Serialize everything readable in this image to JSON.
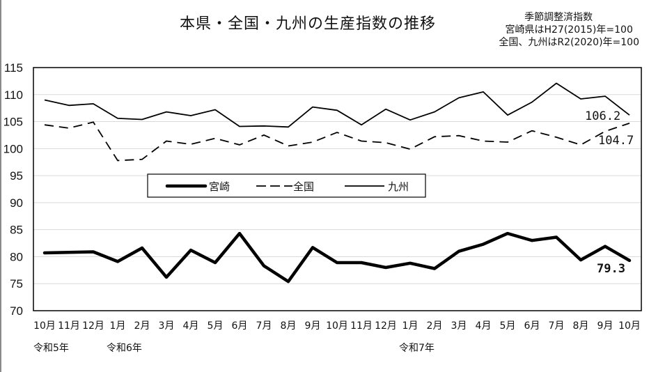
{
  "title": "本県・全国・九州の生産指数の推移",
  "note": {
    "line1": "季節調整済指数",
    "line2": "宮崎県はH27(2015)年=100",
    "line3": "全国、九州はR2(2020)年=100"
  },
  "legend": {
    "miyazaki": "宮崎",
    "national": "全国",
    "kyushu": "九州"
  },
  "end_labels": {
    "kyushu": "106.2",
    "national": "104.7",
    "miyazaki": "79.3"
  },
  "eras": [
    {
      "label": "令和5年",
      "index": 0
    },
    {
      "label": "令和6年",
      "index": 3
    },
    {
      "label": "令和7年",
      "index": 15
    }
  ],
  "colors": {
    "line": "#000000",
    "grid": "#d9d9d9",
    "frame": "#000000"
  },
  "chart_data": {
    "type": "line",
    "title": "本県・全国・九州の生産指数の推移",
    "subtitle": "季節調整済指数 / 宮崎県はH27(2015)年=100 / 全国、九州はR2(2020)年=100",
    "xlabel": "",
    "ylabel": "",
    "ylim": [
      70,
      115
    ],
    "yticks": [
      70,
      75,
      80,
      85,
      90,
      95,
      100,
      105,
      110,
      115
    ],
    "grid": true,
    "legend_position": "inside-middle-left",
    "categories": [
      "10月",
      "11月",
      "12月",
      "1月",
      "2月",
      "3月",
      "4月",
      "5月",
      "6月",
      "7月",
      "8月",
      "9月",
      "10月",
      "11月",
      "12月",
      "1月",
      "2月",
      "3月",
      "4月",
      "5月",
      "6月",
      "7月",
      "8月",
      "9月",
      "10月"
    ],
    "category_groups": [
      "令和5年",
      "令和5年",
      "令和5年",
      "令和6年",
      "令和6年",
      "令和6年",
      "令和6年",
      "令和6年",
      "令和6年",
      "令和6年",
      "令和6年",
      "令和6年",
      "令和6年",
      "令和6年",
      "令和6年",
      "令和7年",
      "令和7年",
      "令和7年",
      "令和7年",
      "令和7年",
      "令和7年",
      "令和7年",
      "令和7年",
      "令和7年",
      "令和7年"
    ],
    "series": [
      {
        "name": "宮崎",
        "style": "solid-thick",
        "values": [
          80.7,
          80.8,
          80.9,
          79.1,
          81.6,
          76.2,
          81.2,
          78.9,
          84.3,
          78.3,
          75.4,
          81.7,
          78.9,
          78.9,
          78.0,
          78.8,
          77.8,
          81.0,
          82.3,
          84.3,
          83.0,
          83.6,
          79.4,
          81.9,
          79.3
        ]
      },
      {
        "name": "全国",
        "style": "dashed",
        "values": [
          104.4,
          103.8,
          104.9,
          97.8,
          98.0,
          101.4,
          100.8,
          101.9,
          100.7,
          102.5,
          100.5,
          101.2,
          103.0,
          101.4,
          101.1,
          99.9,
          102.2,
          102.4,
          101.4,
          101.2,
          103.3,
          102.1,
          100.7,
          103.2,
          104.7
        ]
      },
      {
        "name": "九州",
        "style": "solid-thin",
        "values": [
          109.0,
          108.0,
          108.3,
          105.6,
          105.4,
          106.8,
          106.1,
          107.2,
          104.1,
          104.2,
          104.0,
          107.7,
          107.1,
          104.4,
          107.3,
          105.3,
          106.8,
          109.4,
          110.5,
          106.2,
          108.6,
          112.1,
          109.2,
          109.7,
          106.2
        ]
      }
    ],
    "annotations": [
      {
        "series": "九州",
        "index": 24,
        "text": "106.2"
      },
      {
        "series": "全国",
        "index": 24,
        "text": "104.7"
      },
      {
        "series": "宮崎",
        "index": 24,
        "text": "79.3"
      }
    ]
  }
}
